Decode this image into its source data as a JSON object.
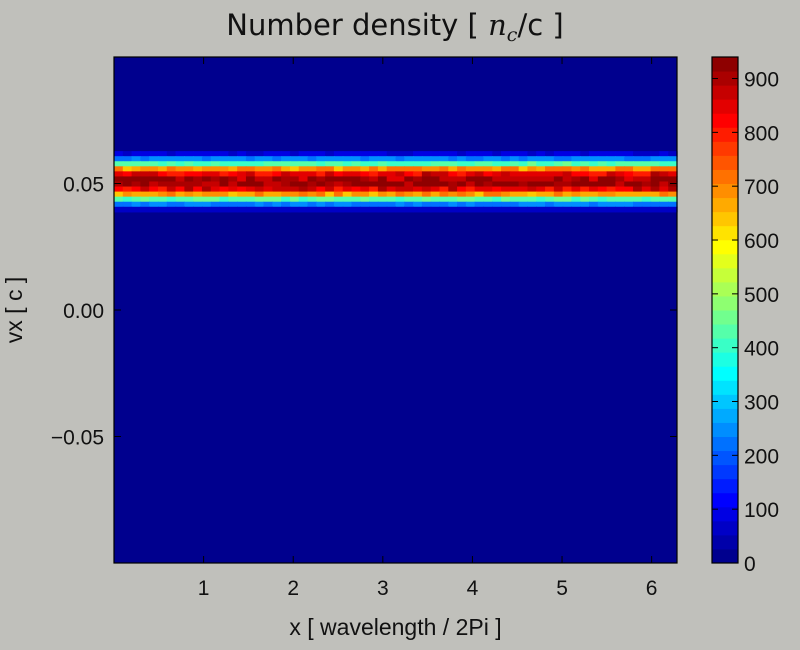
{
  "chart_data": {
    "type": "heatmap",
    "title": {
      "prefix": "Number density [ ",
      "math_base": "n",
      "math_sub": "c",
      "suffix": "/c ]"
    },
    "xlabel": "x [ wavelength / 2Pi ]",
    "ylabel": "vx [ c ]",
    "xlim": [
      0,
      6.283
    ],
    "ylim": [
      -0.1,
      0.1
    ],
    "x_ticks": [
      {
        "value": 1,
        "label": "1"
      },
      {
        "value": 2,
        "label": "2"
      },
      {
        "value": 3,
        "label": "3"
      },
      {
        "value": 4,
        "label": "4"
      },
      {
        "value": 5,
        "label": "5"
      },
      {
        "value": 6,
        "label": "6"
      }
    ],
    "y_ticks": [
      {
        "value": 0.05,
        "label": "0.05"
      },
      {
        "value": 0.0,
        "label": "0.00"
      },
      {
        "value": -0.05,
        "label": "−0.05"
      }
    ],
    "y_bins": [
      {
        "vx_center": 0.0618,
        "density": 80
      },
      {
        "vx_center": 0.0598,
        "density": 240
      },
      {
        "vx_center": 0.0578,
        "density": 420
      },
      {
        "vx_center": 0.0558,
        "density": 690
      },
      {
        "vx_center": 0.0538,
        "density": 840
      },
      {
        "vx_center": 0.0518,
        "density": 910
      },
      {
        "vx_center": 0.0498,
        "density": 920
      },
      {
        "vx_center": 0.0478,
        "density": 850
      },
      {
        "vx_center": 0.0458,
        "density": 680
      },
      {
        "vx_center": 0.0438,
        "density": 430
      },
      {
        "vx_center": 0.0418,
        "density": 230
      },
      {
        "vx_center": 0.0398,
        "density": 70
      }
    ],
    "y_bin_width": 0.002,
    "x_bins": 64,
    "background_density": 0,
    "colorbar": {
      "colormap": "jet",
      "vmin": 0,
      "vmax": 940,
      "levels": 36,
      "ticks": [
        {
          "value": 0,
          "label": "0"
        },
        {
          "value": 100,
          "label": "100"
        },
        {
          "value": 200,
          "label": "200"
        },
        {
          "value": 300,
          "label": "300"
        },
        {
          "value": 400,
          "label": "400"
        },
        {
          "value": 500,
          "label": "500"
        },
        {
          "value": 600,
          "label": "600"
        },
        {
          "value": 700,
          "label": "700"
        },
        {
          "value": 800,
          "label": "800"
        },
        {
          "value": 900,
          "label": "900"
        }
      ]
    }
  }
}
